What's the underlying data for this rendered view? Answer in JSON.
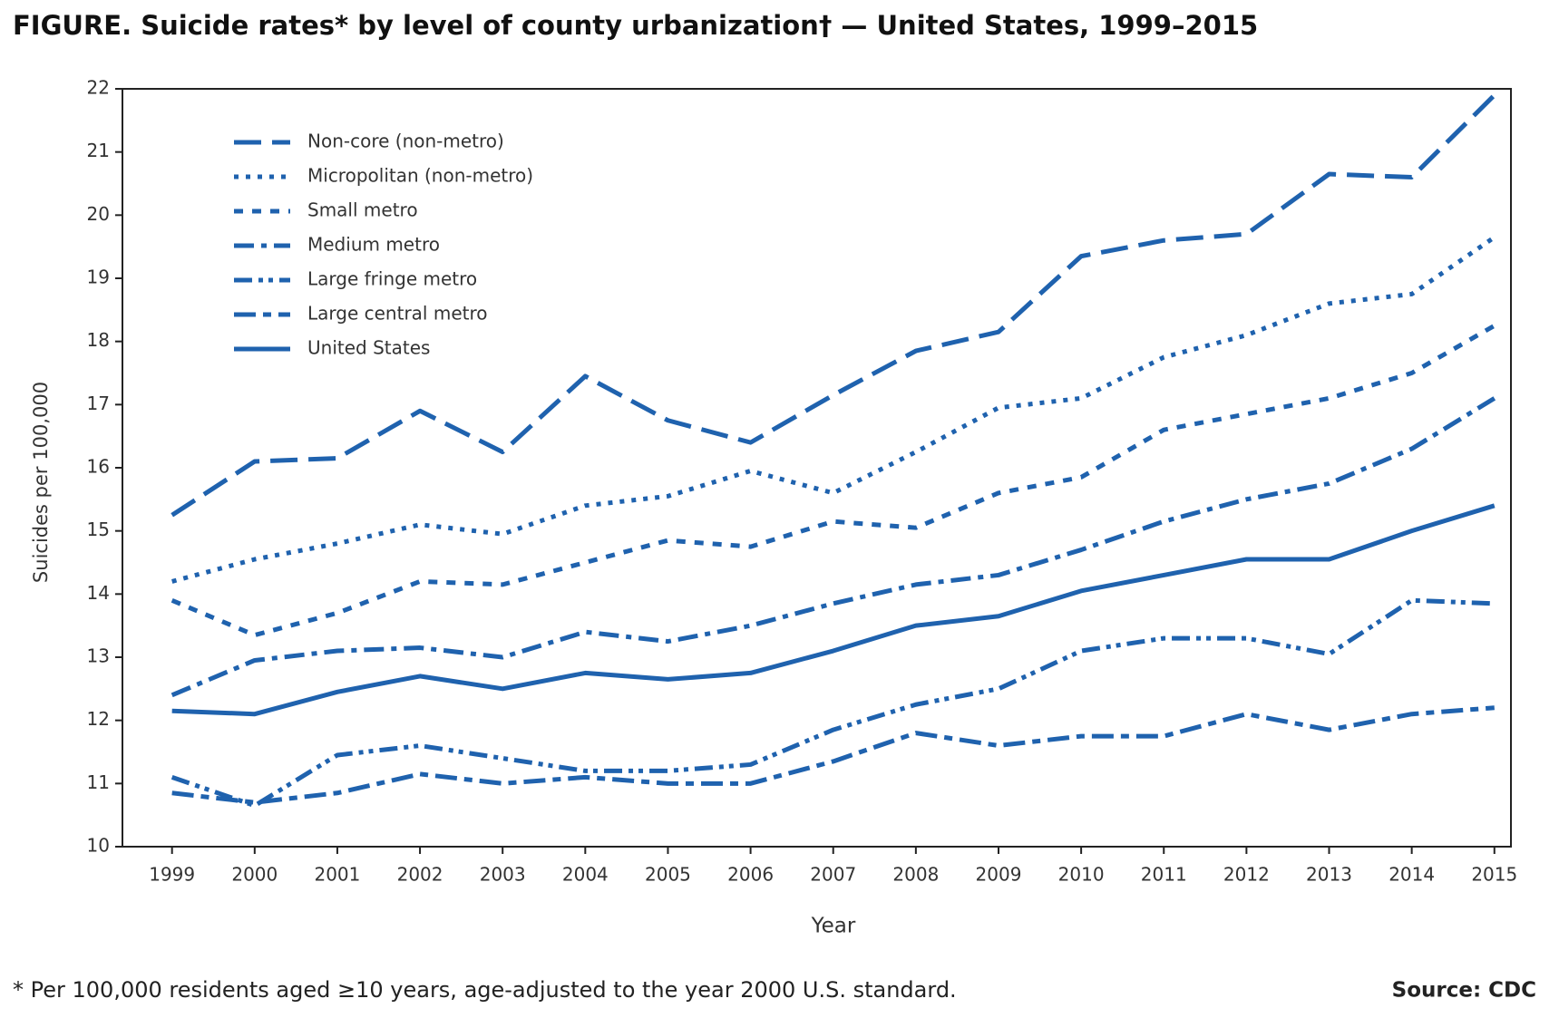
{
  "chart_data": {
    "type": "line",
    "title": "FIGURE. Suicide rates* by level of county urbanization† — United States, 1999–2015",
    "xlabel": "Year",
    "ylabel": "Suicides per 100,000",
    "footnote": "* Per 100,000 residents aged ≥10 years, age-adjusted to the year 2000 U.S. standard.",
    "source": "Source: CDC",
    "x": [
      1999,
      2000,
      2001,
      2002,
      2003,
      2004,
      2005,
      2006,
      2007,
      2008,
      2009,
      2010,
      2011,
      2012,
      2013,
      2014,
      2015
    ],
    "xlim": [
      1998.4,
      2015.2
    ],
    "xticks": [
      1999,
      2000,
      2001,
      2002,
      2003,
      2004,
      2005,
      2006,
      2007,
      2008,
      2009,
      2010,
      2011,
      2012,
      2013,
      2014,
      2015
    ],
    "ylim": [
      10,
      22
    ],
    "yticks": [
      10,
      11,
      12,
      13,
      14,
      15,
      16,
      17,
      18,
      19,
      20,
      21,
      22
    ],
    "legend": "upper left",
    "series": [
      {
        "name": "Non-core (non-metro)",
        "color": "#1f62ae",
        "dash": "30 12",
        "values": [
          15.25,
          16.1,
          16.15,
          16.9,
          16.25,
          17.45,
          16.75,
          16.4,
          17.15,
          17.85,
          18.15,
          19.35,
          19.6,
          19.7,
          20.65,
          20.6,
          21.9
        ]
      },
      {
        "name": "Micropolitan (non-metro)",
        "color": "#1f62ae",
        "dash": "5 8",
        "values": [
          14.2,
          14.55,
          14.8,
          15.1,
          14.95,
          15.4,
          15.55,
          15.95,
          15.6,
          16.25,
          16.95,
          17.1,
          17.75,
          18.1,
          18.6,
          18.75,
          19.65
        ]
      },
      {
        "name": "Small metro",
        "color": "#1f62ae",
        "dash": "10 10",
        "values": [
          13.9,
          13.35,
          13.7,
          14.2,
          14.15,
          14.5,
          14.85,
          14.75,
          15.15,
          15.05,
          15.6,
          15.85,
          16.6,
          16.85,
          17.1,
          17.5,
          18.25
        ]
      },
      {
        "name": "Medium metro",
        "color": "#1f62ae",
        "dash": "22 8 6 8",
        "values": [
          12.4,
          12.95,
          13.1,
          13.15,
          13.0,
          13.4,
          13.25,
          13.5,
          13.85,
          14.15,
          14.3,
          14.7,
          15.15,
          15.5,
          15.75,
          16.3,
          17.1
        ]
      },
      {
        "name": "Large fringe metro",
        "color": "#1f62ae",
        "dash": "20 7 5 6 5 7",
        "values": [
          11.1,
          10.65,
          11.45,
          11.6,
          11.4,
          11.2,
          11.2,
          11.3,
          11.85,
          12.25,
          12.5,
          13.1,
          13.3,
          13.3,
          13.05,
          13.9,
          13.85
        ]
      },
      {
        "name": "Large central metro",
        "color": "#1f62ae",
        "dash": "24 8 9 8",
        "values": [
          10.85,
          10.7,
          10.85,
          11.15,
          11.0,
          11.1,
          11.0,
          11.0,
          11.35,
          11.8,
          11.6,
          11.75,
          11.75,
          12.1,
          11.85,
          12.1,
          12.2
        ]
      },
      {
        "name": "United States",
        "color": "#1f62ae",
        "dash": "none",
        "values": [
          12.15,
          12.1,
          12.45,
          12.7,
          12.5,
          12.75,
          12.65,
          12.75,
          13.1,
          13.5,
          13.65,
          14.05,
          14.3,
          14.55,
          14.55,
          15.0,
          15.4
        ]
      }
    ]
  }
}
